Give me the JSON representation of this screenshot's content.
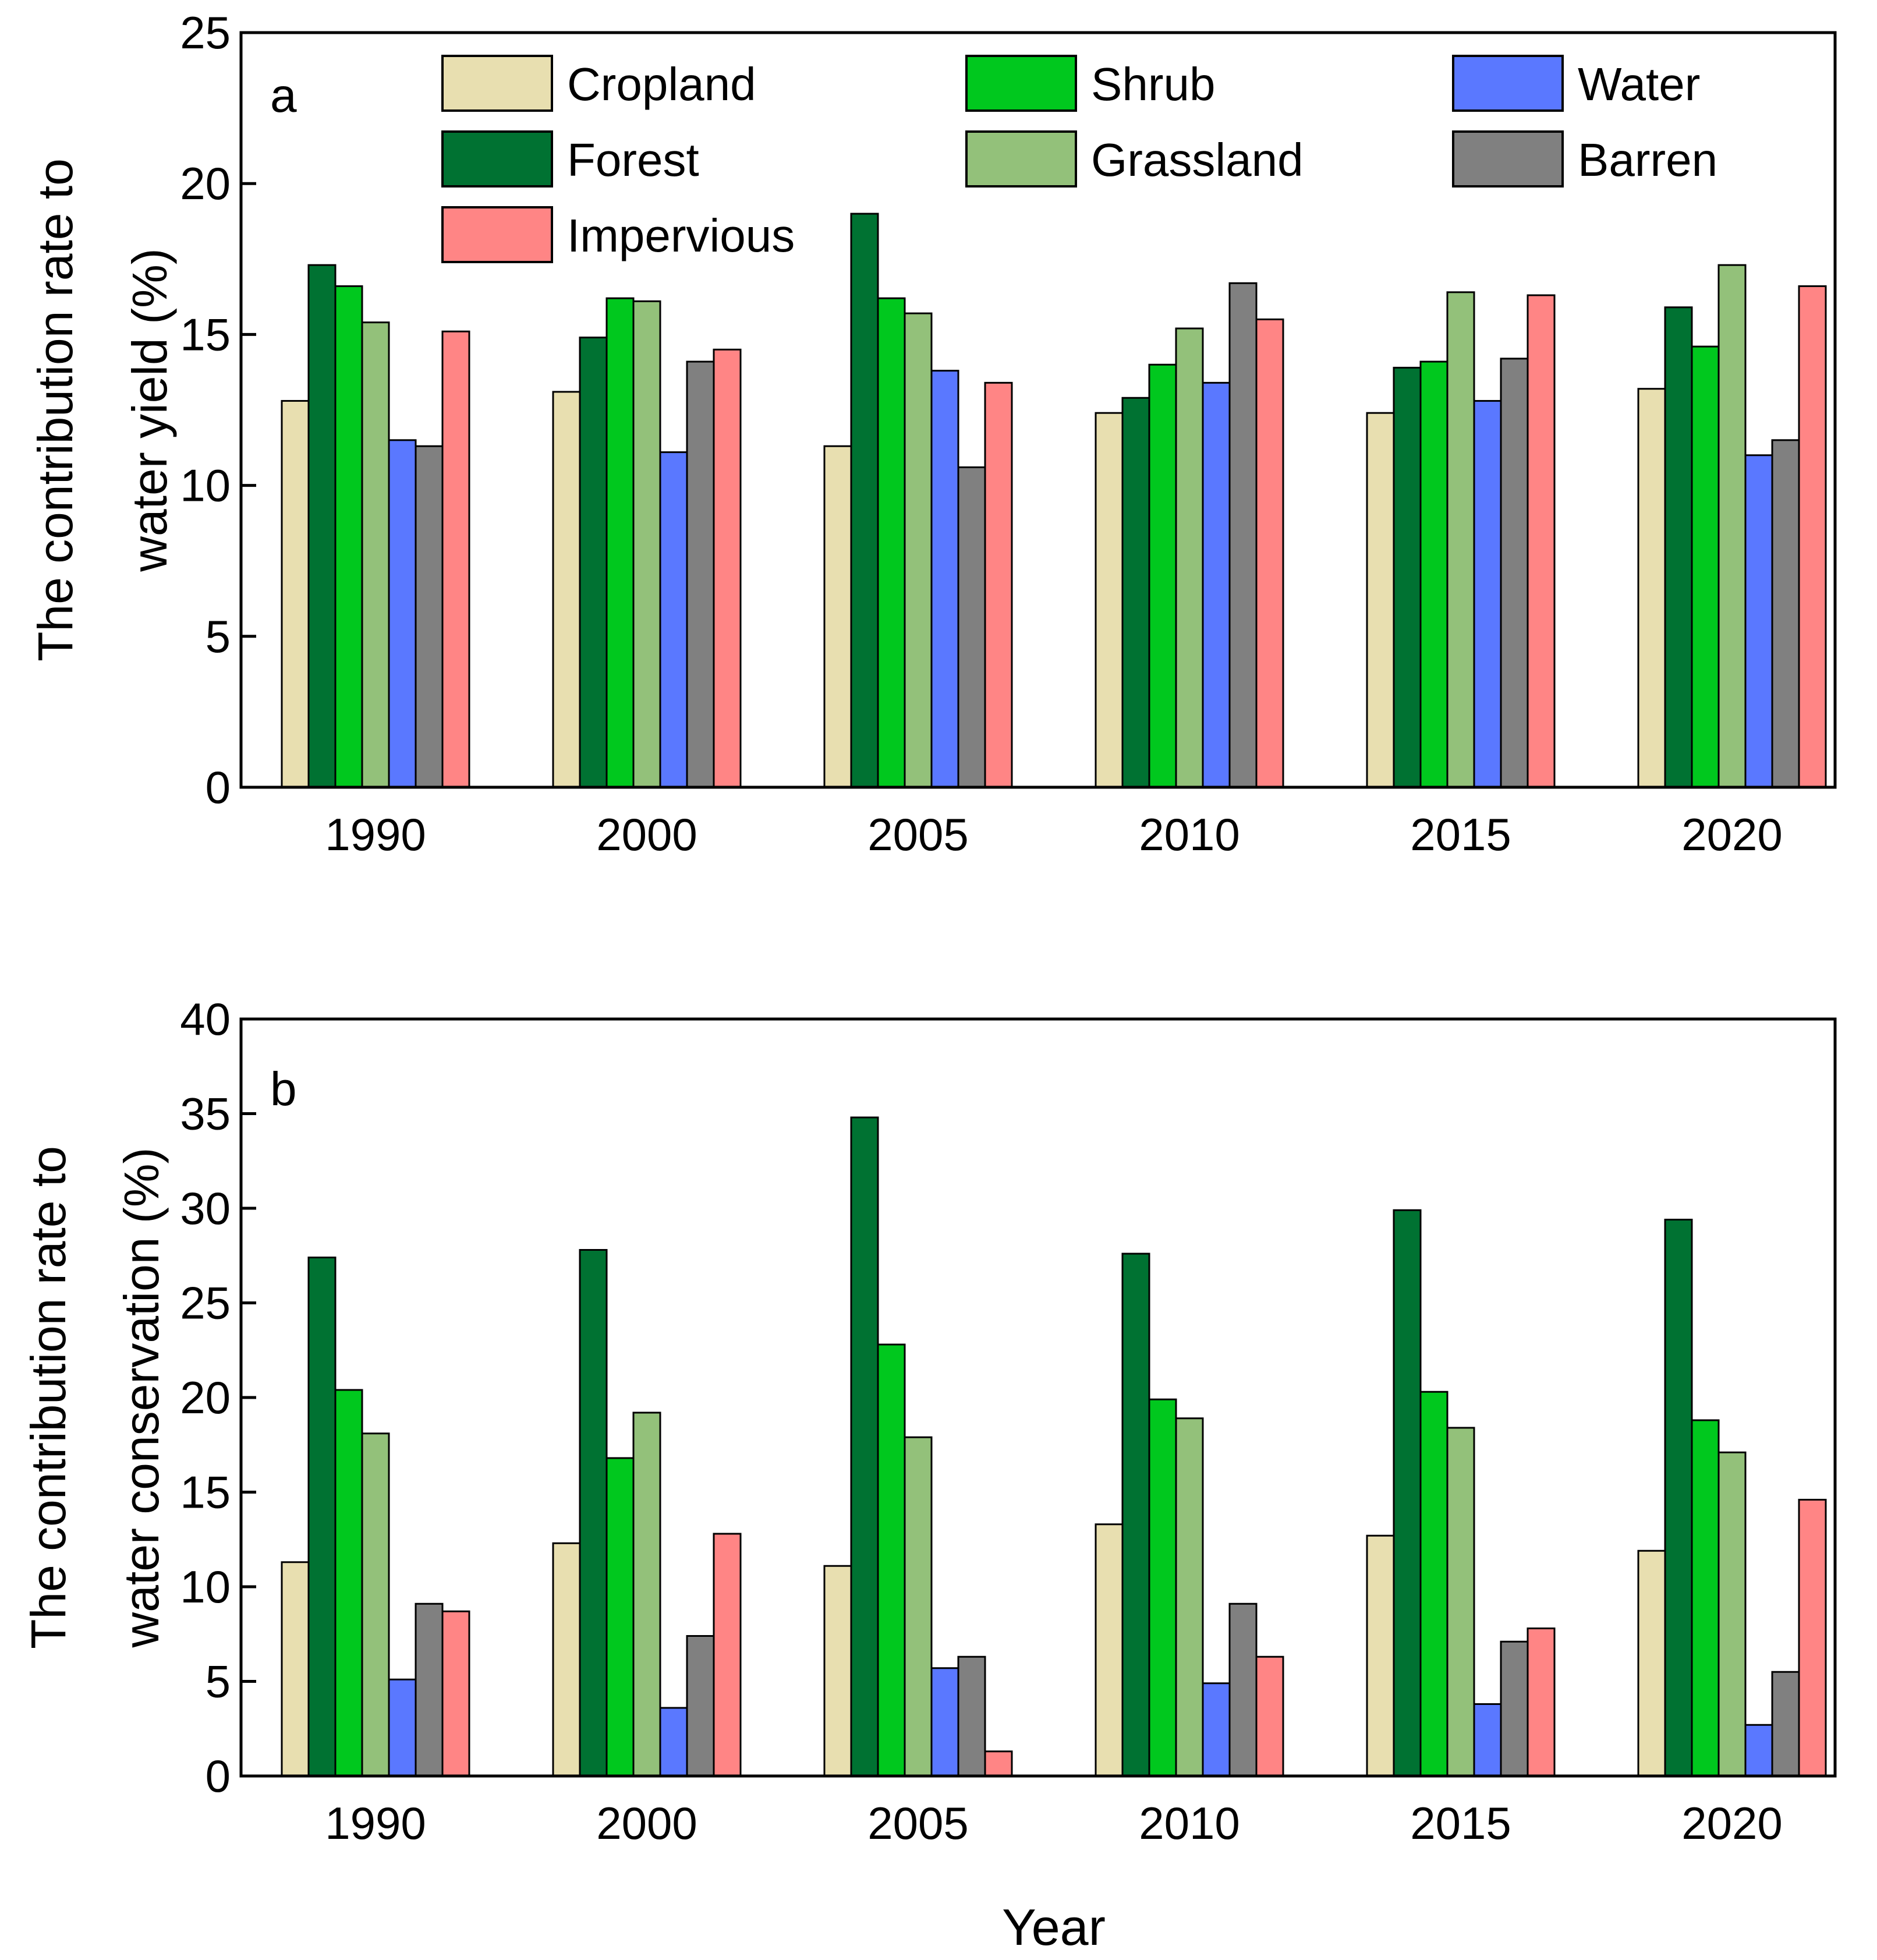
{
  "colors": {
    "Cropland": "#e8dfb0",
    "Forest": "#007232",
    "Impervious": "#ff8585",
    "Shrub": "#00c81e",
    "Grassland": "#93c17a",
    "Water": "#5a78ff",
    "Barren": "#808080"
  },
  "legend": {
    "items": [
      "Cropland",
      "Forest",
      "Impervious",
      "Shrub",
      "Grassland",
      "Water",
      "Barren"
    ]
  },
  "x_axis_title": "Year",
  "chart_data": [
    {
      "type": "bar",
      "panel_label": "a",
      "ylabel_line1": "The contribution rate to",
      "ylabel_line2": "water yield (%)",
      "ylim": [
        0,
        25
      ],
      "yticks": [
        "0",
        "5",
        "10",
        "15",
        "20",
        "25"
      ],
      "categories": [
        "1990",
        "2000",
        "2005",
        "2010",
        "2015",
        "2020"
      ],
      "legend_position": "top",
      "series": [
        {
          "name": "Cropland",
          "values": [
            12.8,
            13.1,
            11.3,
            12.4,
            12.4,
            13.2
          ]
        },
        {
          "name": "Forest",
          "values": [
            17.3,
            14.9,
            19.0,
            12.9,
            13.9,
            15.9
          ]
        },
        {
          "name": "Shrub",
          "values": [
            16.6,
            16.2,
            16.2,
            14.0,
            14.1,
            14.6
          ]
        },
        {
          "name": "Grassland",
          "values": [
            15.4,
            16.1,
            15.7,
            15.2,
            16.4,
            17.3
          ]
        },
        {
          "name": "Water",
          "values": [
            11.5,
            11.1,
            13.8,
            13.4,
            12.8,
            11.0
          ]
        },
        {
          "name": "Barren",
          "values": [
            11.3,
            14.1,
            10.6,
            16.7,
            14.2,
            11.5
          ]
        },
        {
          "name": "Impervious",
          "values": [
            15.1,
            14.5,
            13.4,
            15.5,
            16.3,
            16.6
          ]
        }
      ]
    },
    {
      "type": "bar",
      "panel_label": "b",
      "ylabel_line1": "The contribution rate to",
      "ylabel_line2": "water conservation (%)",
      "ylim": [
        0,
        40
      ],
      "yticks": [
        "0",
        "5",
        "10",
        "15",
        "20",
        "25",
        "30",
        "35",
        "40"
      ],
      "categories": [
        "1990",
        "2000",
        "2005",
        "2010",
        "2015",
        "2020"
      ],
      "series": [
        {
          "name": "Cropland",
          "values": [
            11.3,
            12.3,
            11.1,
            13.3,
            12.7,
            11.9
          ]
        },
        {
          "name": "Forest",
          "values": [
            27.4,
            27.8,
            34.8,
            27.6,
            29.9,
            29.4
          ]
        },
        {
          "name": "Shrub",
          "values": [
            20.4,
            16.8,
            22.8,
            19.9,
            20.3,
            18.8
          ]
        },
        {
          "name": "Grassland",
          "values": [
            18.1,
            19.2,
            17.9,
            18.9,
            18.4,
            17.1
          ]
        },
        {
          "name": "Water",
          "values": [
            5.1,
            3.6,
            5.7,
            4.9,
            3.8,
            2.7
          ]
        },
        {
          "name": "Barren",
          "values": [
            9.1,
            7.4,
            6.3,
            9.1,
            7.1,
            5.5
          ]
        },
        {
          "name": "Impervious",
          "values": [
            8.7,
            12.8,
            1.3,
            6.3,
            7.8,
            14.6
          ]
        }
      ]
    }
  ]
}
